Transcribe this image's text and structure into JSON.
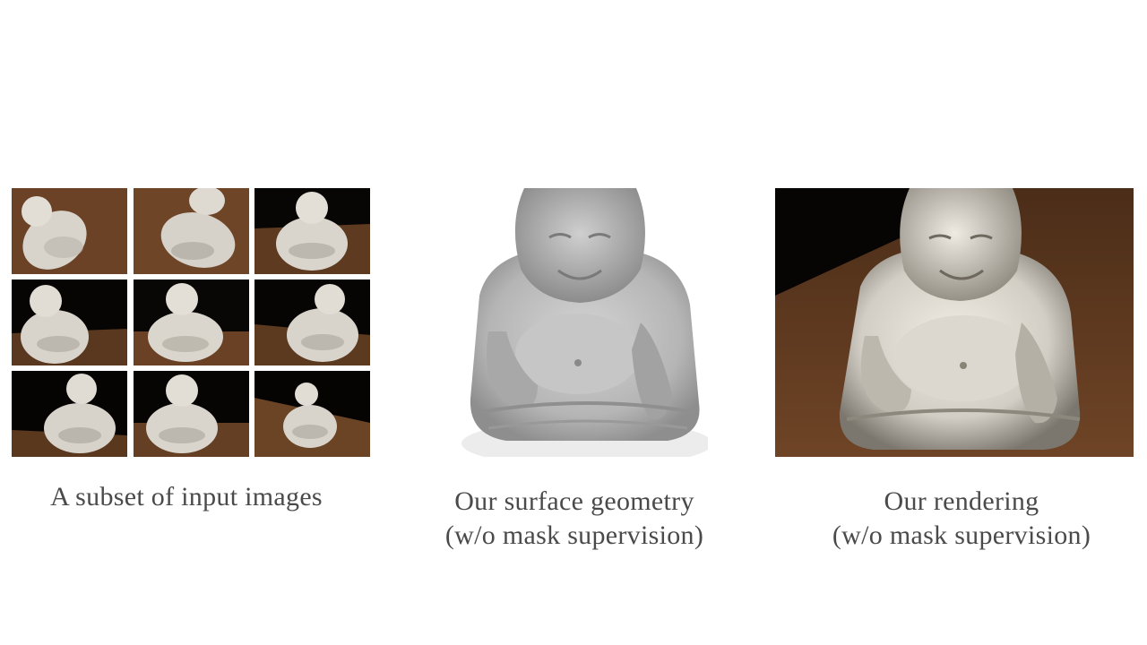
{
  "figure": {
    "captions": {
      "inputs": "A subset of input images",
      "geometry_line1": "Our surface geometry",
      "geometry_line2": "(w/o mask supervision)",
      "rendering_line1": "Our rendering",
      "rendering_line2": "(w/o mask supervision)"
    },
    "colors": {
      "table_brown": "#6a3f22",
      "background_dark": "#0a0806",
      "statue_light": "#e6e3dc",
      "mesh_gray": "#bdbdbd"
    }
  }
}
